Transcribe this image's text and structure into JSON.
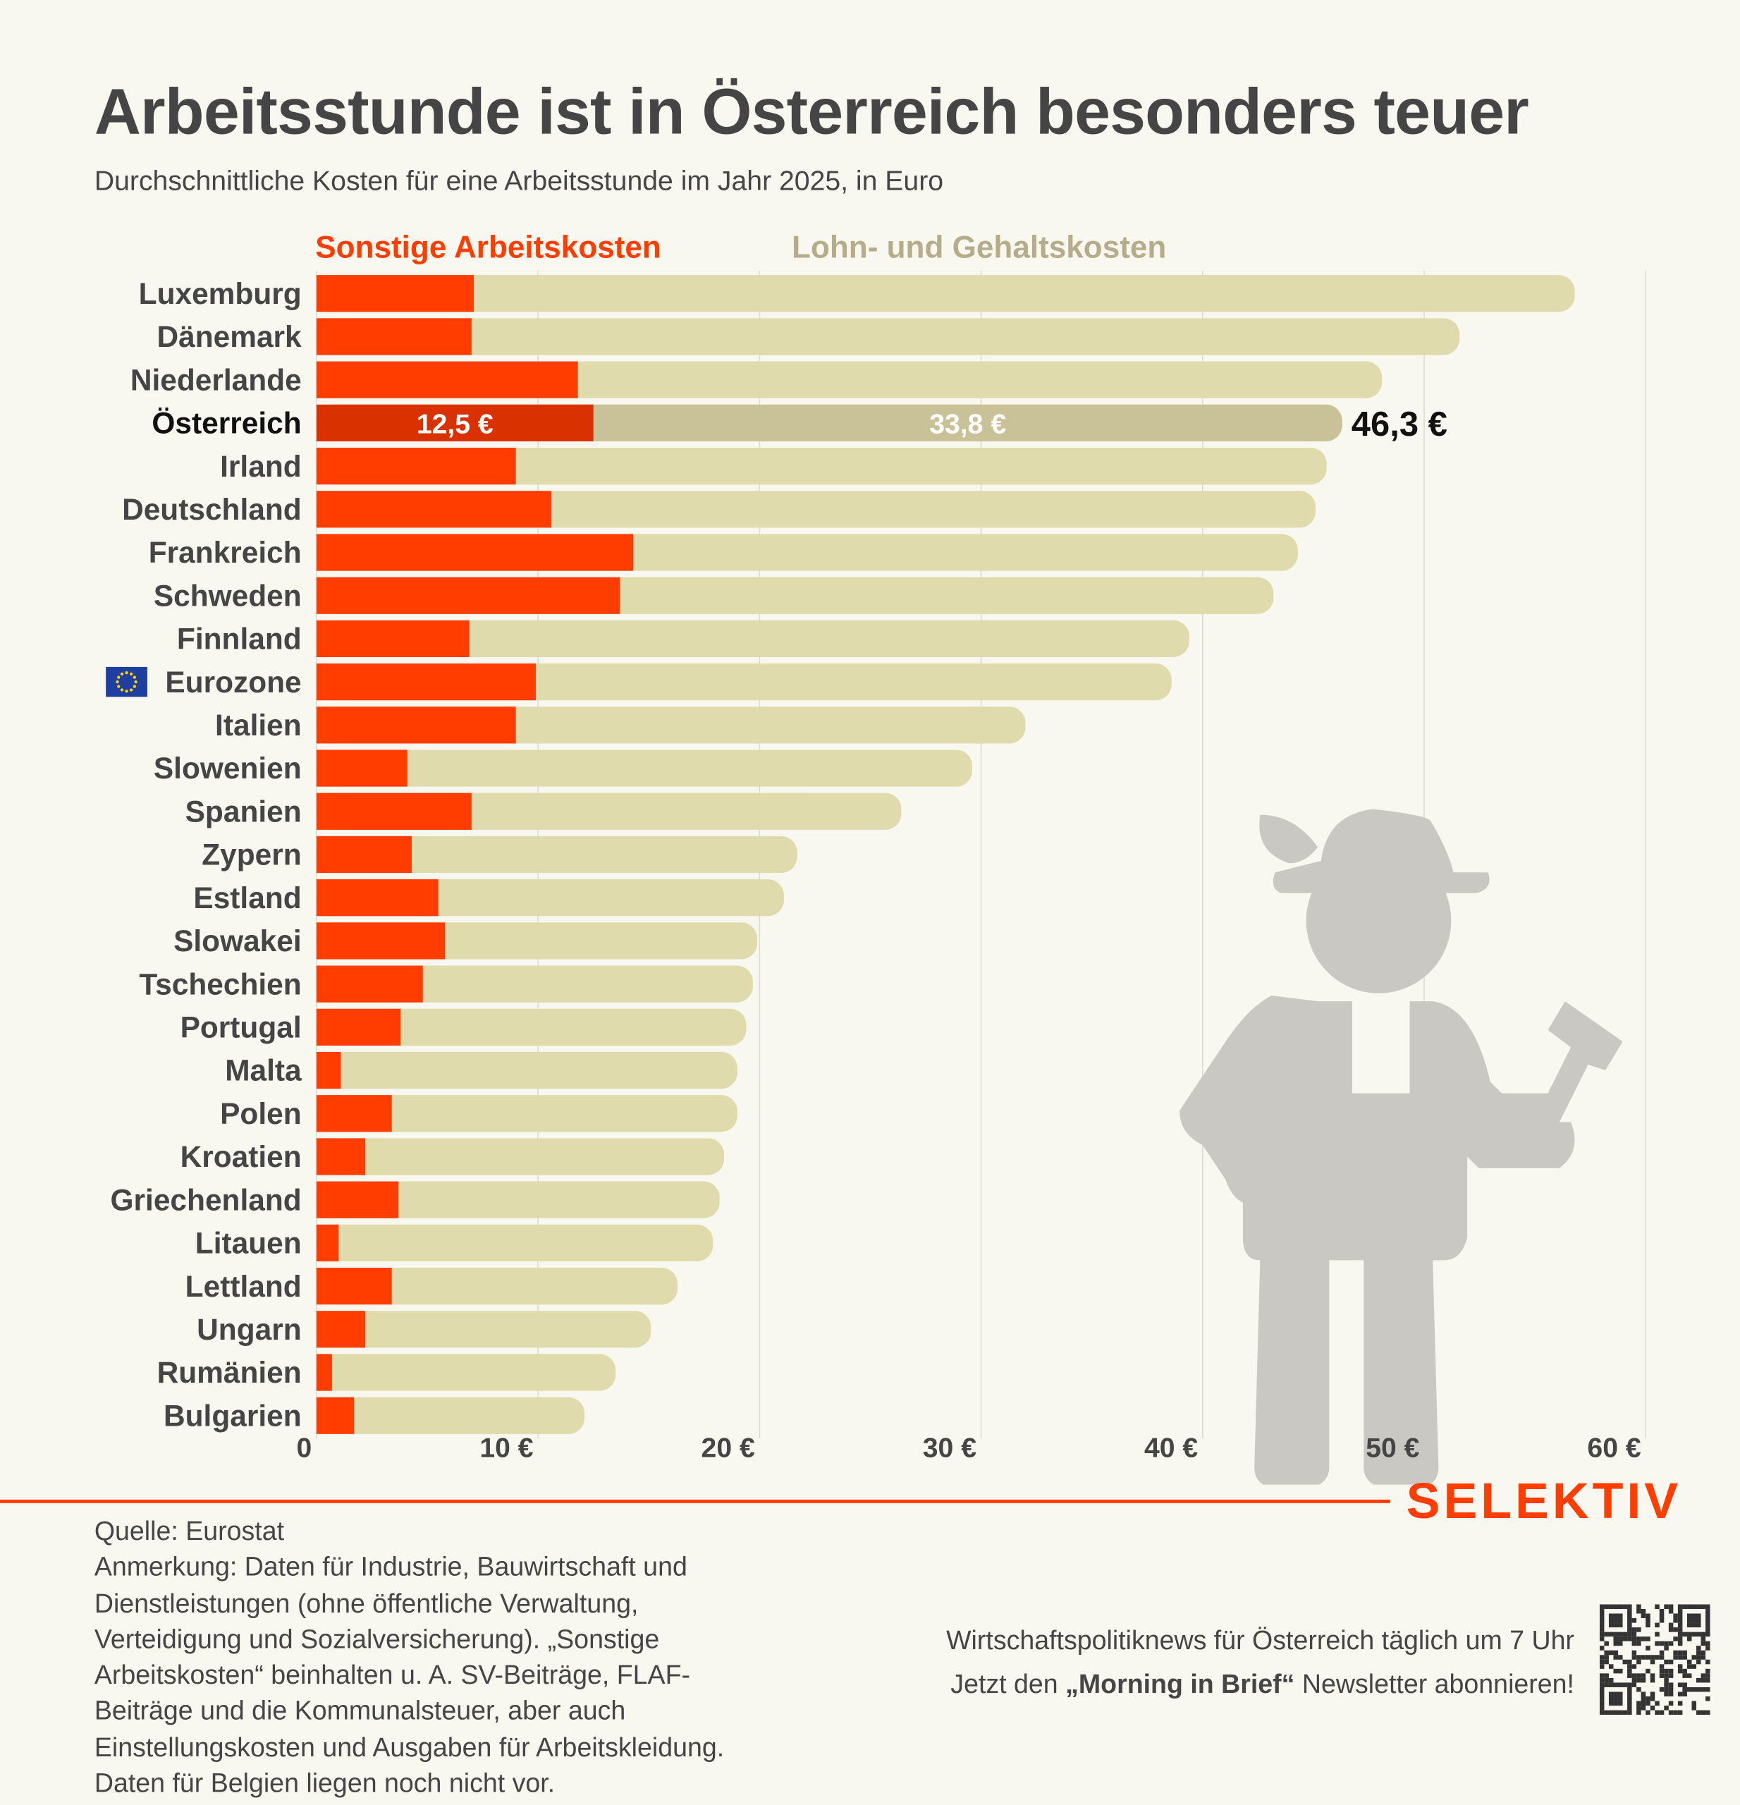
{
  "title": "Arbeitsstunde ist in Österreich besonders teuer",
  "subtitle": "Durchschnittliche Kosten für eine Arbeitsstunde im Jahr 2025, in Euro",
  "colors": {
    "sonstige": "#ff3d00",
    "lohn": "#e0dbad",
    "sonstige_highlight": "#d93200",
    "lohn_highlight": "#c9c298",
    "text": "#454545",
    "brand": "#ff3d00"
  },
  "chart_data": {
    "type": "bar",
    "orientation": "horizontal",
    "stacked": true,
    "title": "Arbeitsstunde ist in Österreich besonders teuer",
    "xlim": [
      0,
      60
    ],
    "x_ticks": [
      "0",
      "10 €",
      "20 €",
      "30 €",
      "40 €",
      "50 €",
      "60 €"
    ],
    "grid": "vertical",
    "legend": "top",
    "categories": [
      "Luxemburg",
      "Dänemark",
      "Niederlande",
      "Österreich",
      "Irland",
      "Deutschland",
      "Frankreich",
      "Schweden",
      "Finnland",
      "Eurozone",
      "Italien",
      "Slowenien",
      "Spanien",
      "Zypern",
      "Estland",
      "Slowakei",
      "Tschechien",
      "Portugal",
      "Malta",
      "Polen",
      "Kroatien",
      "Griechenland",
      "Litauen",
      "Lettland",
      "Ungarn",
      "Rumänien",
      "Bulgarien"
    ],
    "highlight": "Österreich",
    "series": [
      {
        "name": "Sonstige Arbeitskosten",
        "values": [
          7.1,
          7.0,
          11.8,
          12.5,
          9.0,
          10.6,
          14.3,
          13.7,
          6.9,
          9.9,
          9.0,
          4.1,
          7.0,
          4.3,
          5.5,
          5.8,
          4.8,
          3.8,
          1.1,
          3.4,
          2.2,
          3.7,
          1.0,
          3.4,
          2.2,
          0.7,
          1.7
        ]
      },
      {
        "name": "Lohn- und Gehaltskosten",
        "values": [
          49.7,
          44.6,
          36.3,
          33.8,
          36.6,
          34.5,
          30.0,
          29.5,
          32.5,
          28.7,
          23.0,
          25.5,
          19.4,
          17.4,
          15.6,
          14.1,
          14.9,
          15.6,
          17.9,
          15.6,
          16.2,
          14.5,
          16.9,
          12.9,
          12.9,
          12.8,
          10.4
        ]
      }
    ],
    "annotations": {
      "sonstige": "12,5 €",
      "lohn": "33,8 €",
      "total": "46,3 €"
    }
  },
  "footer": {
    "source": "Quelle: Eurostat",
    "note_lines": [
      "Anmerkung: Daten für Industrie, Bauwirtschaft und",
      "Dienstleistungen (ohne öffentliche Verwaltung,",
      "Verteidigung und Sozialversicherung). „Sonstige",
      "Arbeitskosten“ beinhalten u. A. SV-Beiträge, FLAF-",
      "Beiträge und die Kommunalsteuer, aber auch",
      "Einstellungskosten und Ausgaben für Arbeitskleidung.",
      "Daten für Belgien liegen noch nicht vor."
    ],
    "promo_line1": "Wirtschaftspolitiknews für Österreich täglich um 7 Uhr",
    "promo_pre": "Jetzt den ",
    "promo_bold": "„Morning in Brief“",
    "promo_post": " Newsletter abonnieren!",
    "logo": "SELEKTIV"
  }
}
